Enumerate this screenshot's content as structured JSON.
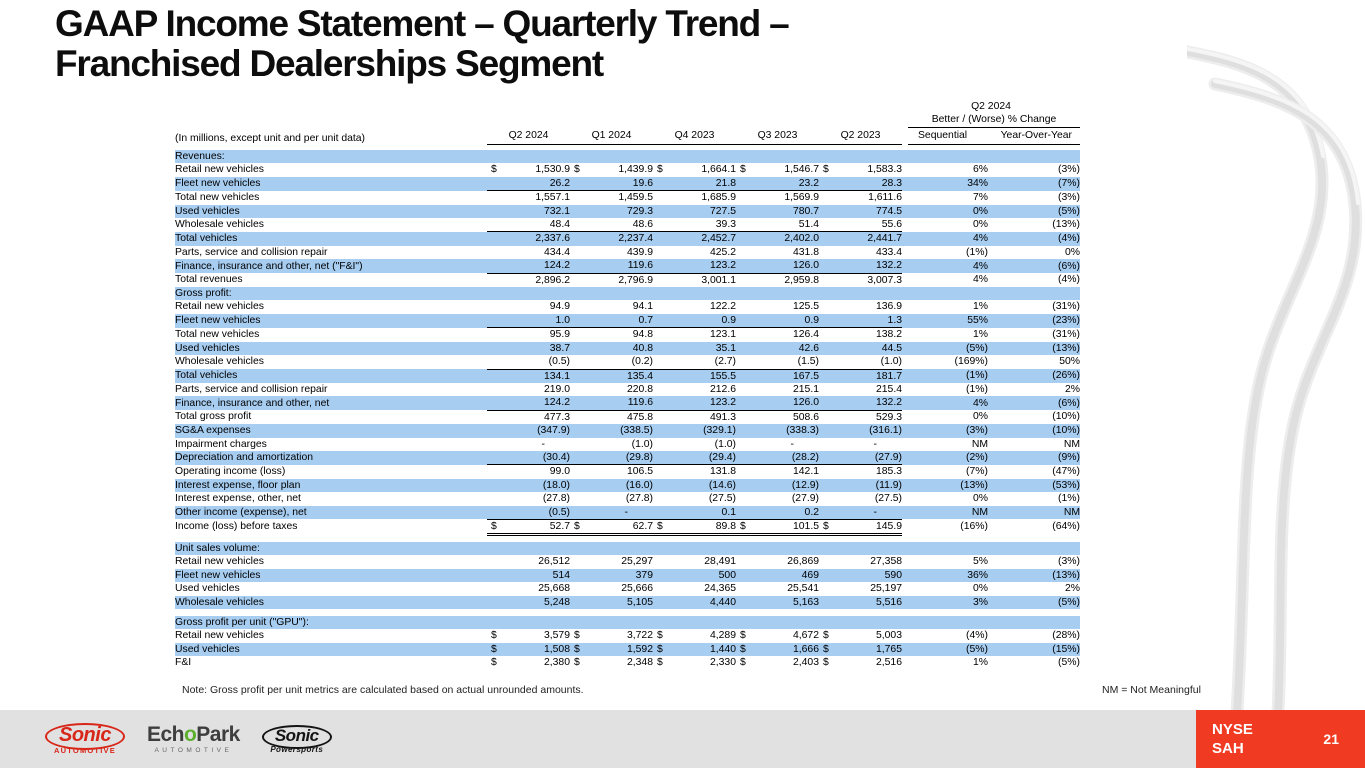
{
  "slide": {
    "title_line1": "GAAP Income Statement – Quarterly Trend –",
    "title_line2": "Franchised Dealerships Segment",
    "note": "Note: Gross profit per unit metrics are calculated based on actual unrounded amounts.",
    "nm_note": "NM = Not Meaningful",
    "page_number": "21",
    "ticker": {
      "exchange": "NYSE",
      "symbol": "SAH"
    }
  },
  "colors": {
    "row_highlight": "#A7CDF1",
    "accent_red": "#F13A22",
    "footer_gray": "#E1E1E1",
    "sonic_red": "#D82619",
    "echopark_green": "#5BAE2E"
  },
  "logos": {
    "sonic_automotive": {
      "name": "Sonic",
      "sub": "Automotive"
    },
    "echopark": {
      "part1": "Ech",
      "accent": "o",
      "part2": "Park",
      "sub": "AUTOMOTIVE"
    },
    "sonic_powersports": {
      "name": "Sonic",
      "sub": "Powersports"
    }
  },
  "table": {
    "units_label": "(In millions, except unit and per unit data)",
    "change_header": {
      "line1": "Q2 2024",
      "line2": "Better / (Worse) % Change"
    },
    "quarter_columns": [
      "Q2 2024",
      "Q1 2024",
      "Q4 2023",
      "Q3 2023",
      "Q2 2023"
    ],
    "change_columns": [
      "Sequential",
      "Year-Over-Year"
    ],
    "rows": [
      {
        "type": "section",
        "label": "Revenues:",
        "shaded": true
      },
      {
        "type": "data",
        "label": "Retail new vehicles",
        "indent": 1,
        "shaded": false,
        "dollar": true,
        "underline": "none",
        "values": [
          "1,530.9",
          "1,439.9",
          "1,664.1",
          "1,546.7",
          "1,583.3"
        ],
        "seq": "6%",
        "yoy": "(3%)"
      },
      {
        "type": "data",
        "label": "Fleet new vehicles",
        "indent": 1,
        "shaded": true,
        "dollar": false,
        "underline": "single",
        "values": [
          "26.2",
          "19.6",
          "21.8",
          "23.2",
          "28.3"
        ],
        "seq": "34%",
        "yoy": "(7%)"
      },
      {
        "type": "data",
        "label": "Total new vehicles",
        "indent": 2,
        "shaded": false,
        "dollar": false,
        "underline": "none",
        "values": [
          "1,557.1",
          "1,459.5",
          "1,685.9",
          "1,569.9",
          "1,611.6"
        ],
        "seq": "7%",
        "yoy": "(3%)"
      },
      {
        "type": "data",
        "label": "Used vehicles",
        "indent": 1,
        "shaded": true,
        "dollar": false,
        "underline": "none",
        "values": [
          "732.1",
          "729.3",
          "727.5",
          "780.7",
          "774.5"
        ],
        "seq": "0%",
        "yoy": "(5%)"
      },
      {
        "type": "data",
        "label": "Wholesale vehicles",
        "indent": 1,
        "shaded": false,
        "dollar": false,
        "underline": "single",
        "values": [
          "48.4",
          "48.6",
          "39.3",
          "51.4",
          "55.6"
        ],
        "seq": "0%",
        "yoy": "(13%)"
      },
      {
        "type": "data",
        "label": "Total vehicles",
        "indent": 2,
        "shaded": true,
        "dollar": false,
        "underline": "none",
        "values": [
          "2,337.6",
          "2,237.4",
          "2,452.7",
          "2,402.0",
          "2,441.7"
        ],
        "seq": "4%",
        "yoy": "(4%)"
      },
      {
        "type": "data",
        "label": "Parts, service and collision repair",
        "indent": 1,
        "shaded": false,
        "dollar": false,
        "underline": "none",
        "values": [
          "434.4",
          "439.9",
          "425.2",
          "431.8",
          "433.4"
        ],
        "seq": "(1%)",
        "yoy": "0%"
      },
      {
        "type": "data",
        "label": "Finance, insurance and other, net (\"F&I\")",
        "indent": 1,
        "shaded": true,
        "dollar": false,
        "underline": "single",
        "values": [
          "124.2",
          "119.6",
          "123.2",
          "126.0",
          "132.2"
        ],
        "seq": "4%",
        "yoy": "(6%)"
      },
      {
        "type": "data",
        "label": "Total revenues",
        "indent": 2,
        "shaded": false,
        "dollar": false,
        "underline": "none",
        "values": [
          "2,896.2",
          "2,796.9",
          "3,001.1",
          "2,959.8",
          "3,007.3"
        ],
        "seq": "4%",
        "yoy": "(4%)"
      },
      {
        "type": "section",
        "label": "Gross profit:",
        "shaded": true
      },
      {
        "type": "data",
        "label": "Retail new vehicles",
        "indent": 1,
        "shaded": false,
        "dollar": false,
        "underline": "none",
        "values": [
          "94.9",
          "94.1",
          "122.2",
          "125.5",
          "136.9"
        ],
        "seq": "1%",
        "yoy": "(31%)"
      },
      {
        "type": "data",
        "label": "Fleet new vehicles",
        "indent": 1,
        "shaded": true,
        "dollar": false,
        "underline": "single",
        "values": [
          "1.0",
          "0.7",
          "0.9",
          "0.9",
          "1.3"
        ],
        "seq": "55%",
        "yoy": "(23%)"
      },
      {
        "type": "data",
        "label": "Total new vehicles",
        "indent": 2,
        "shaded": false,
        "dollar": false,
        "underline": "none",
        "values": [
          "95.9",
          "94.8",
          "123.1",
          "126.4",
          "138.2"
        ],
        "seq": "1%",
        "yoy": "(31%)"
      },
      {
        "type": "data",
        "label": "Used vehicles",
        "indent": 1,
        "shaded": true,
        "dollar": false,
        "underline": "none",
        "values": [
          "38.7",
          "40.8",
          "35.1",
          "42.6",
          "44.5"
        ],
        "seq": "(5%)",
        "yoy": "(13%)"
      },
      {
        "type": "data",
        "label": "Wholesale vehicles",
        "indent": 1,
        "shaded": false,
        "dollar": false,
        "underline": "single",
        "values": [
          "(0.5)",
          "(0.2)",
          "(2.7)",
          "(1.5)",
          "(1.0)"
        ],
        "seq": "(169%)",
        "yoy": "50%"
      },
      {
        "type": "data",
        "label": "Total vehicles",
        "indent": 2,
        "shaded": true,
        "dollar": false,
        "underline": "none",
        "values": [
          "134.1",
          "135.4",
          "155.5",
          "167.5",
          "181.7"
        ],
        "seq": "(1%)",
        "yoy": "(26%)"
      },
      {
        "type": "data",
        "label": "Parts, service and collision repair",
        "indent": 1,
        "shaded": false,
        "dollar": false,
        "underline": "none",
        "values": [
          "219.0",
          "220.8",
          "212.6",
          "215.1",
          "215.4"
        ],
        "seq": "(1%)",
        "yoy": "2%"
      },
      {
        "type": "data",
        "label": "Finance, insurance and other, net",
        "indent": 1,
        "shaded": true,
        "dollar": false,
        "underline": "single",
        "values": [
          "124.2",
          "119.6",
          "123.2",
          "126.0",
          "132.2"
        ],
        "seq": "4%",
        "yoy": "(6%)"
      },
      {
        "type": "data",
        "label": "Total gross profit",
        "indent": 2,
        "shaded": false,
        "dollar": false,
        "underline": "none",
        "values": [
          "477.3",
          "475.8",
          "491.3",
          "508.6",
          "529.3"
        ],
        "seq": "0%",
        "yoy": "(10%)"
      },
      {
        "type": "data",
        "label": "SG&A expenses",
        "indent": 1,
        "shaded": true,
        "dollar": false,
        "underline": "none",
        "values": [
          "(347.9)",
          "(338.5)",
          "(329.1)",
          "(338.3)",
          "(316.1)"
        ],
        "seq": "(3%)",
        "yoy": "(10%)"
      },
      {
        "type": "data",
        "label": "Impairment charges",
        "indent": 1,
        "shaded": false,
        "dollar": false,
        "underline": "none",
        "values": [
          "-",
          "(1.0)",
          "(1.0)",
          "-",
          "-"
        ],
        "seq": "NM",
        "yoy": "NM"
      },
      {
        "type": "data",
        "label": "Depreciation and amortization",
        "indent": 1,
        "shaded": true,
        "dollar": false,
        "underline": "single",
        "values": [
          "(30.4)",
          "(29.8)",
          "(29.4)",
          "(28.2)",
          "(27.9)"
        ],
        "seq": "(2%)",
        "yoy": "(9%)"
      },
      {
        "type": "data",
        "label": "Operating income (loss)",
        "indent": 2,
        "shaded": false,
        "dollar": false,
        "underline": "none",
        "values": [
          "99.0",
          "106.5",
          "131.8",
          "142.1",
          "185.3"
        ],
        "seq": "(7%)",
        "yoy": "(47%)"
      },
      {
        "type": "data",
        "label": "Interest expense, floor plan",
        "indent": 1,
        "shaded": true,
        "dollar": false,
        "underline": "none",
        "values": [
          "(18.0)",
          "(16.0)",
          "(14.6)",
          "(12.9)",
          "(11.9)"
        ],
        "seq": "(13%)",
        "yoy": "(53%)"
      },
      {
        "type": "data",
        "label": "Interest expense, other, net",
        "indent": 1,
        "shaded": false,
        "dollar": false,
        "underline": "none",
        "values": [
          "(27.8)",
          "(27.8)",
          "(27.5)",
          "(27.9)",
          "(27.5)"
        ],
        "seq": "0%",
        "yoy": "(1%)"
      },
      {
        "type": "data",
        "label": "Other income (expense), net",
        "indent": 1,
        "shaded": true,
        "dollar": false,
        "underline": "single",
        "values": [
          "(0.5)",
          "-",
          "0.1",
          "0.2",
          "-"
        ],
        "seq": "NM",
        "yoy": "NM"
      },
      {
        "type": "data",
        "label": "Income (loss) before taxes",
        "indent": 2,
        "shaded": false,
        "dollar": true,
        "underline": "double",
        "values": [
          "52.7",
          "62.7",
          "89.8",
          "101.5",
          "145.9"
        ],
        "seq": "(16%)",
        "yoy": "(64%)"
      },
      {
        "type": "spacer"
      },
      {
        "type": "section",
        "label": "Unit sales volume:",
        "shaded": true
      },
      {
        "type": "data",
        "label": "Retail new vehicles",
        "indent": 1,
        "shaded": false,
        "dollar": false,
        "underline": "none",
        "values": [
          "26,512",
          "25,297",
          "28,491",
          "26,869",
          "27,358"
        ],
        "seq": "5%",
        "yoy": "(3%)"
      },
      {
        "type": "data",
        "label": "Fleet new vehicles",
        "indent": 1,
        "shaded": true,
        "dollar": false,
        "underline": "none",
        "values": [
          "514",
          "379",
          "500",
          "469",
          "590"
        ],
        "seq": "36%",
        "yoy": "(13%)"
      },
      {
        "type": "data",
        "label": "Used vehicles",
        "indent": 1,
        "shaded": false,
        "dollar": false,
        "underline": "none",
        "values": [
          "25,668",
          "25,666",
          "24,365",
          "25,541",
          "25,197"
        ],
        "seq": "0%",
        "yoy": "2%"
      },
      {
        "type": "data",
        "label": "Wholesale vehicles",
        "indent": 1,
        "shaded": true,
        "dollar": false,
        "underline": "none",
        "values": [
          "5,248",
          "5,105",
          "4,440",
          "5,163",
          "5,516"
        ],
        "seq": "3%",
        "yoy": "(5%)"
      },
      {
        "type": "spacer"
      },
      {
        "type": "section",
        "label": "Gross profit per unit (\"GPU\"):",
        "shaded": true
      },
      {
        "type": "data",
        "label": "Retail new vehicles",
        "indent": 1,
        "shaded": false,
        "dollar": true,
        "underline": "none",
        "values": [
          "3,579",
          "3,722",
          "4,289",
          "4,672",
          "5,003"
        ],
        "seq": "(4%)",
        "yoy": "(28%)"
      },
      {
        "type": "data",
        "label": "Used vehicles",
        "indent": 1,
        "shaded": true,
        "dollar": true,
        "underline": "none",
        "values": [
          "1,508",
          "1,592",
          "1,440",
          "1,666",
          "1,765"
        ],
        "seq": "(5%)",
        "yoy": "(15%)"
      },
      {
        "type": "data",
        "label": "F&I",
        "indent": 1,
        "shaded": false,
        "dollar": true,
        "underline": "none",
        "values": [
          "2,380",
          "2,348",
          "2,330",
          "2,403",
          "2,516"
        ],
        "seq": "1%",
        "yoy": "(5%)"
      }
    ]
  }
}
